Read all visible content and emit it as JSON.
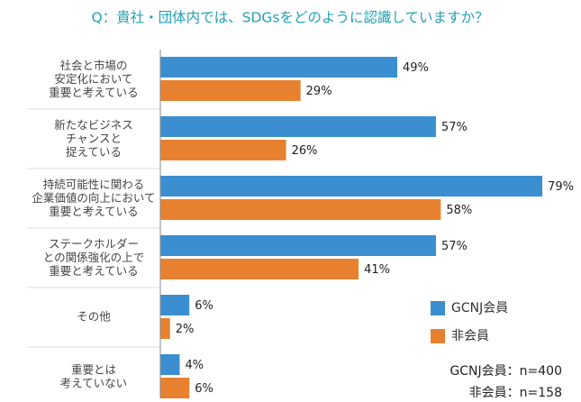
{
  "chart_data": {
    "type": "bar",
    "orientation": "horizontal",
    "title": "Q：貴社・団体内では、SDGsをどのように認識していますか？",
    "categories": [
      "社会と市場の\n安定化において\n重要と考えている",
      "新たなビジネス\nチャンスと\n捉えている",
      "持続可能性に関わる\n企業価値の向上において\n重要と考えている",
      "ステークホルダー\nとの関係強化の上で\n重要と考えている",
      "その他",
      "重要とは\n考えていない"
    ],
    "series": [
      {
        "name": "GCNJ会員",
        "color": "#3b8fd1",
        "values": [
          49,
          57,
          79,
          57,
          6,
          4
        ],
        "value_labels": [
          "49%",
          "57%",
          "79%",
          "57%",
          "6%",
          "4%"
        ]
      },
      {
        "name": "非会員",
        "color": "#e8812f",
        "values": [
          29,
          26,
          58,
          41,
          2,
          6
        ],
        "value_labels": [
          "29%",
          "26%",
          "58%",
          "41%",
          "2%",
          "6%"
        ]
      }
    ],
    "xlim": [
      0,
      87
    ],
    "notes": [
      "GCNJ会員：n=400",
      "非会員：n=158"
    ]
  }
}
